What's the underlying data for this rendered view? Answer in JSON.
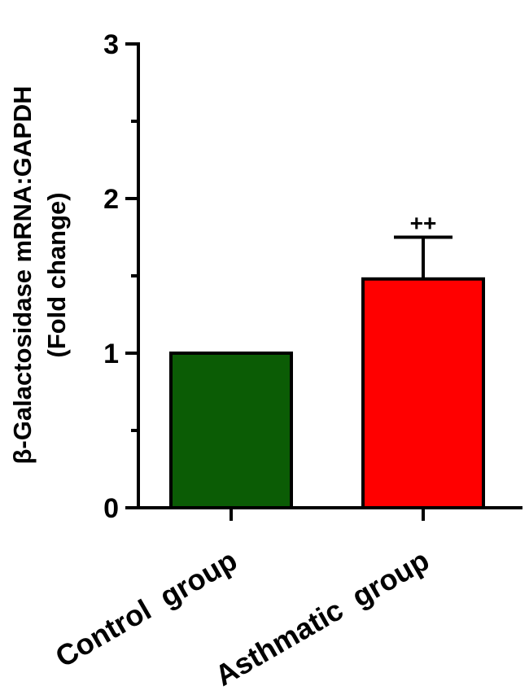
{
  "chart_data": {
    "type": "bar",
    "categories": [
      "Control  group",
      "Asthmatic  group"
    ],
    "values": [
      1.0,
      1.48
    ],
    "errors": [
      0,
      0.27
    ],
    "bar_colors": [
      "#0b5c05",
      "#ff0000"
    ],
    "ylabel_line1": "β-Galactosidase mRNA:GAPDH",
    "ylabel_line2": "(Fold change)",
    "ylim": [
      0,
      3
    ],
    "yticks": [
      0,
      1,
      2,
      3
    ],
    "annotations": [
      {
        "category": "Asthmatic  group",
        "text": "++"
      }
    ]
  }
}
